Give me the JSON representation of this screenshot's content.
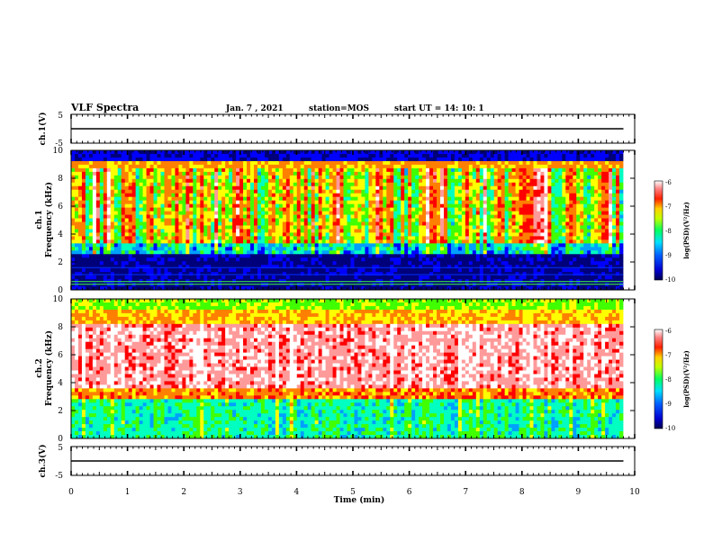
{
  "header": {
    "title": "VLF Spectra",
    "date": "Jan. 7 , 2021",
    "station": "station=MOS",
    "start": "start UT = 14: 10: 1"
  },
  "chart_data": [
    {
      "type": "line",
      "name": "ch1-voltage",
      "ylabel": "ch.1(V)",
      "xlim": [
        0,
        10
      ],
      "ylim": [
        -5,
        5
      ],
      "yticks": [
        "5",
        "-5"
      ],
      "x": [
        0,
        9.8
      ],
      "y": [
        0,
        0
      ]
    },
    {
      "type": "heatmap",
      "name": "ch1-spectrogram",
      "ylabel_line1": "ch.1",
      "ylabel_line2": "Frequency (kHz)",
      "xlim": [
        0,
        10
      ],
      "ylim": [
        0,
        10
      ],
      "yticks": [
        "0",
        "2",
        "4",
        "6",
        "8",
        "10"
      ],
      "data_end_min": 9.8,
      "colorbar": {
        "label": "log(PSD)(V²/Hz)",
        "range": [
          -10,
          -6
        ],
        "ticks": [
          "-6",
          "-7",
          "-8",
          "-9",
          "-10"
        ]
      }
    },
    {
      "type": "heatmap",
      "name": "ch2-spectrogram",
      "ylabel_line1": "ch.2",
      "ylabel_line2": "Frequency (kHz)",
      "xlim": [
        0,
        10
      ],
      "ylim": [
        0,
        10
      ],
      "yticks": [
        "0",
        "2",
        "4",
        "6",
        "8",
        "10"
      ],
      "data_end_min": 9.8,
      "colorbar": {
        "label": "log(PSD)(V²/Hz)",
        "range": [
          -10,
          -6
        ],
        "ticks": [
          "-6",
          "-7",
          "-8",
          "-9",
          "-10"
        ]
      }
    },
    {
      "type": "line",
      "name": "ch3-voltage",
      "ylabel": "ch.3(V)",
      "xlim": [
        0,
        10
      ],
      "ylim": [
        -5,
        5
      ],
      "yticks": [
        "5",
        "-5"
      ],
      "x": [
        0,
        9.8
      ],
      "y": [
        0,
        0
      ]
    }
  ],
  "xaxis": {
    "label": "Time (min)",
    "ticks": [
      "0",
      "1",
      "2",
      "3",
      "4",
      "5",
      "6",
      "7",
      "8",
      "9",
      "10"
    ]
  },
  "colors": {
    "colormap": [
      "#00007a",
      "#0000ff",
      "#00a0ff",
      "#00ffc0",
      "#40ff00",
      "#ffff00",
      "#ff8000",
      "#ff0000",
      "#ff9a9a",
      "#ffffff"
    ]
  }
}
